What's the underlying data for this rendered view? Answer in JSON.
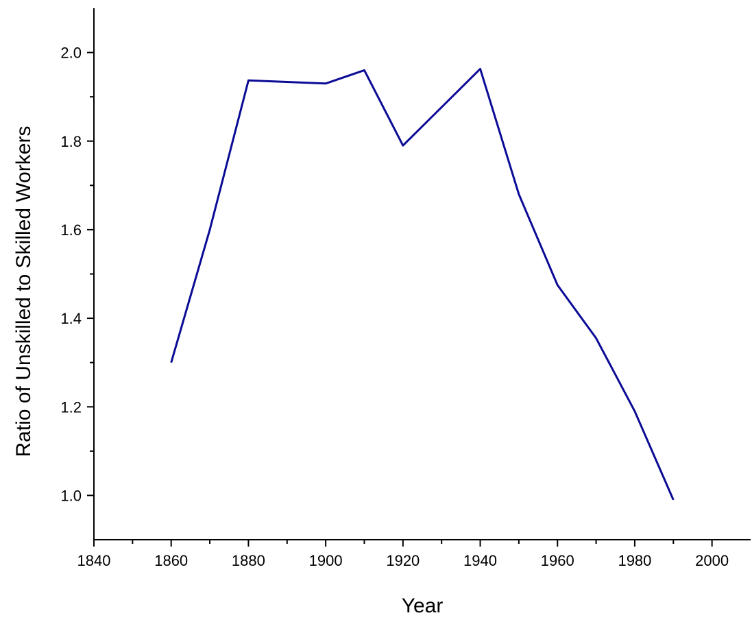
{
  "chart_data": {
    "type": "line",
    "x_label": "Year",
    "y_label": "Ratio of Unskilled to Skilled Workers",
    "x": [
      1860,
      1870,
      1880,
      1900,
      1910,
      1920,
      1940,
      1950,
      1960,
      1970,
      1980,
      1990
    ],
    "series": [
      {
        "color": "#0b0b96",
        "values": [
          1.3,
          1.6,
          1.937,
          1.93,
          1.96,
          1.79,
          1.963,
          1.68,
          1.475,
          1.355,
          1.19,
          0.99
        ]
      }
    ],
    "xlim": [
      1840,
      2010
    ],
    "xticks": [
      1840,
      1860,
      1880,
      1900,
      1920,
      1940,
      1960,
      1980,
      2000
    ],
    "ylim": [
      0.9,
      2.1
    ],
    "yticks": [
      {
        "value": 1,
        "label": "1.0"
      },
      {
        "value": 1.2,
        "label": "1.2"
      },
      {
        "value": 1.4,
        "label": "1.4"
      },
      {
        "value": 1.6,
        "label": "1.6"
      },
      {
        "value": 1.8,
        "label": "1.8"
      },
      {
        "value": 2,
        "label": "2.0"
      }
    ],
    "grid": false
  }
}
